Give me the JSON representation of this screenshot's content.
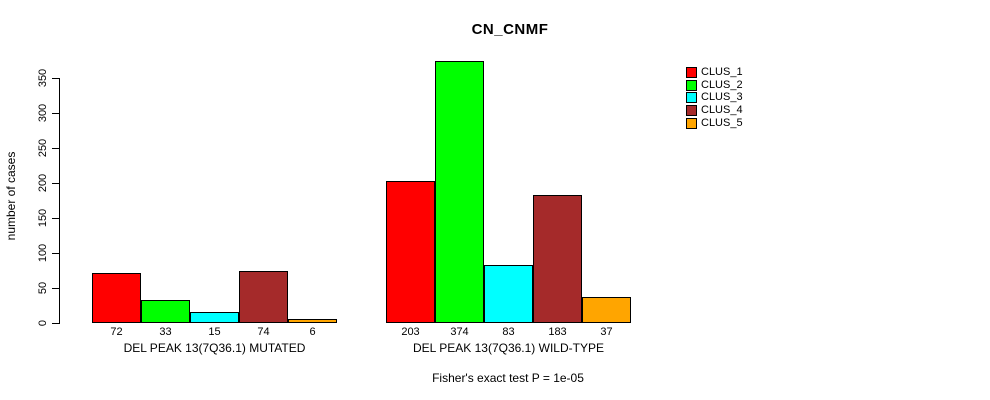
{
  "title": "CN_CNMF",
  "annotation": "Fisher's exact test P = 1e-05",
  "y_axis": {
    "label": "number of cases",
    "ticks": [
      0,
      50,
      100,
      150,
      200,
      250,
      300,
      350
    ]
  },
  "legend": {
    "position": "right",
    "entries": [
      {
        "label": "CLUS_1",
        "color": "#FF0000"
      },
      {
        "label": "CLUS_2",
        "color": "#00FF00"
      },
      {
        "label": "CLUS_3",
        "color": "#00FFFF"
      },
      {
        "label": "CLUS_4",
        "color": "#A52A2A"
      },
      {
        "label": "CLUS_5",
        "color": "#FFA500"
      }
    ]
  },
  "chart_data": {
    "type": "bar",
    "title": "CN_CNMF",
    "xlabel": "",
    "ylabel": "number of cases",
    "ylim": [
      0,
      350
    ],
    "yticks": [
      0,
      50,
      100,
      150,
      200,
      250,
      300,
      350
    ],
    "grid": false,
    "legend_position": "right",
    "grouped": true,
    "bar_value_labels_shown": true,
    "categories": [
      "DEL PEAK 13(7Q36.1) MUTATED",
      "DEL PEAK 13(7Q36.1) WILD-TYPE"
    ],
    "series": [
      {
        "name": "CLUS_1",
        "color": "#FF0000",
        "values": [
          72,
          203
        ]
      },
      {
        "name": "CLUS_2",
        "color": "#00FF00",
        "values": [
          33,
          374
        ]
      },
      {
        "name": "CLUS_3",
        "color": "#00FFFF",
        "values": [
          15,
          83
        ]
      },
      {
        "name": "CLUS_4",
        "color": "#A52A2A",
        "values": [
          74,
          183
        ]
      },
      {
        "name": "CLUS_5",
        "color": "#FFA500",
        "values": [
          6,
          37
        ]
      }
    ],
    "annotation": "Fisher's exact test P = 1e-05"
  }
}
